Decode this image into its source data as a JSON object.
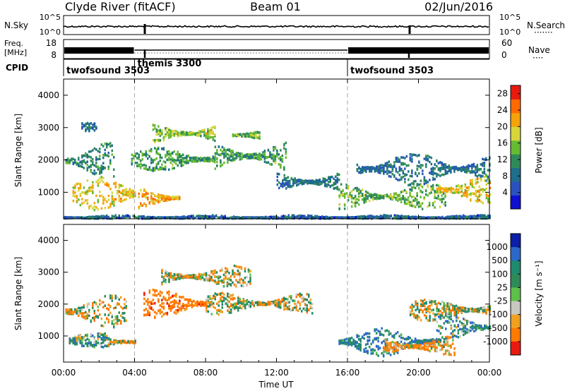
{
  "header": {
    "station": "Clyde River (fitACF)",
    "beam": "Beam 01",
    "date": "02/Jun/2016"
  },
  "status_panels": {
    "nsky_label": "N.Sky",
    "nsearch_label": "N.Search",
    "nsky_ticks": [
      "10^5",
      "10^0"
    ],
    "nsearch_ticks": [
      "10^5",
      "10^0"
    ],
    "freq_label_line1": "Freq.",
    "freq_label_line2": "[MHz]",
    "freq_ticks": [
      "18",
      "8"
    ],
    "nave_label": "Nave",
    "nave_ticks": [
      "60",
      "0"
    ],
    "cpid_label": "CPID",
    "dotted_line_sample": "·······",
    "dotted_line_sample_short": "····"
  },
  "cpid_segments": [
    {
      "label": "twofsound 3503",
      "start_hour": 0.0,
      "end_hour": 4.0
    },
    {
      "label": "themis 3300",
      "start_hour": 4.0,
      "end_hour": 16.0
    },
    {
      "label": "twofsound 3503",
      "start_hour": 16.0,
      "end_hour": 24.0
    }
  ],
  "chart_data": [
    {
      "type": "heatmap",
      "title": "Power",
      "ylabel": "Slant Range [km]",
      "xlabel": "",
      "x_range_hours": [
        0,
        24
      ],
      "ylim": [
        180,
        4500
      ],
      "y_ticks": [
        1000,
        2000,
        3000,
        4000
      ],
      "colorbar": {
        "label": "Power [dB]",
        "ticks": [
          4,
          8,
          12,
          16,
          20,
          24,
          28
        ],
        "range": [
          0,
          30
        ],
        "colors": [
          "#1010d0",
          "#2a52be",
          "#1f6e8c",
          "#2e8b57",
          "#66bb33",
          "#d6d63a",
          "#f5a30a",
          "#ff6a00",
          "#e81a10"
        ]
      },
      "echo_bands": [
        {
          "start_hour": 0.1,
          "end_hour": 2.8,
          "range_km_center": 2000,
          "thickness_km": 500,
          "power_db": 10
        },
        {
          "start_hour": 0.5,
          "end_hour": 4.0,
          "range_km_center": 1000,
          "thickness_km": 450,
          "power_db": 20
        },
        {
          "start_hour": 1.0,
          "end_hour": 1.8,
          "range_km_center": 3050,
          "thickness_km": 120,
          "power_db": 8
        },
        {
          "start_hour": 3.8,
          "end_hour": 8.5,
          "range_km_center": 2050,
          "thickness_km": 320,
          "power_db": 12
        },
        {
          "start_hour": 5.0,
          "end_hour": 8.5,
          "range_km_center": 2850,
          "thickness_km": 280,
          "power_db": 16
        },
        {
          "start_hour": 4.2,
          "end_hour": 6.5,
          "range_km_center": 850,
          "thickness_km": 300,
          "power_db": 22
        },
        {
          "start_hour": 8.5,
          "end_hour": 12.5,
          "range_km_center": 2150,
          "thickness_km": 400,
          "power_db": 12
        },
        {
          "start_hour": 9.5,
          "end_hour": 11.0,
          "range_km_center": 2800,
          "thickness_km": 160,
          "power_db": 14
        },
        {
          "start_hour": 12.0,
          "end_hour": 15.5,
          "range_km_center": 1350,
          "thickness_km": 300,
          "power_db": 8
        },
        {
          "start_hour": 15.5,
          "end_hour": 21.5,
          "range_km_center": 900,
          "thickness_km": 350,
          "power_db": 14
        },
        {
          "start_hour": 16.5,
          "end_hour": 24.0,
          "range_km_center": 1750,
          "thickness_km": 450,
          "power_db": 8
        },
        {
          "start_hour": 21.0,
          "end_hour": 24.0,
          "range_km_center": 1100,
          "thickness_km": 400,
          "power_db": 20
        },
        {
          "start_hour": 0.0,
          "end_hour": 24.0,
          "range_km_center": 250,
          "thickness_km": 70,
          "power_db": 6
        }
      ]
    },
    {
      "type": "heatmap",
      "title": "Velocity",
      "ylabel": "Slant Range [km]",
      "xlabel": "Time UT",
      "x_range_hours": [
        0,
        24
      ],
      "x_ticks": [
        "00:00",
        "04:00",
        "08:00",
        "12:00",
        "16:00",
        "20:00",
        "00:00"
      ],
      "ylim": [
        180,
        4500
      ],
      "y_ticks": [
        1000,
        2000,
        3000,
        4000
      ],
      "colorbar": {
        "label": "Velocity [m s⁻¹]",
        "ticks": [
          "1000",
          "500",
          "100",
          "25",
          "-25",
          "-100",
          "-500",
          "-1000"
        ],
        "colors": [
          "#0b1fa8",
          "#2b68c8",
          "#1f8a6e",
          "#2e8b57",
          "#5cc04a",
          "#c8c8c0",
          "#f0a020",
          "#ff7a00",
          "#e81a10"
        ]
      },
      "echo_bands": [
        {
          "start_hour": 0.1,
          "end_hour": 3.5,
          "range_km_center": 1800,
          "thickness_km": 450,
          "velocity": 0
        },
        {
          "start_hour": 0.3,
          "end_hour": 2.5,
          "range_km_center": 900,
          "thickness_km": 200,
          "velocity": 150
        },
        {
          "start_hour": 2.5,
          "end_hour": 4.0,
          "range_km_center": 850,
          "thickness_km": 200,
          "velocity": 0
        },
        {
          "start_hour": 4.5,
          "end_hour": 8.0,
          "range_km_center": 2050,
          "thickness_km": 400,
          "velocity": -300
        },
        {
          "start_hour": 5.5,
          "end_hour": 10.5,
          "range_km_center": 2900,
          "thickness_km": 300,
          "velocity": 0
        },
        {
          "start_hour": 8.0,
          "end_hour": 14.0,
          "range_km_center": 2050,
          "thickness_km": 300,
          "velocity": 0
        },
        {
          "start_hour": 15.5,
          "end_hour": 21.0,
          "range_km_center": 850,
          "thickness_km": 400,
          "velocity": 300
        },
        {
          "start_hour": 18.0,
          "end_hour": 22.0,
          "range_km_center": 700,
          "thickness_km": 300,
          "velocity": -150
        },
        {
          "start_hour": 21.0,
          "end_hour": 24.0,
          "range_km_center": 1300,
          "thickness_km": 400,
          "velocity": 200
        },
        {
          "start_hour": 19.5,
          "end_hour": 24.0,
          "range_km_center": 1850,
          "thickness_km": 300,
          "velocity": 0
        }
      ]
    }
  ]
}
